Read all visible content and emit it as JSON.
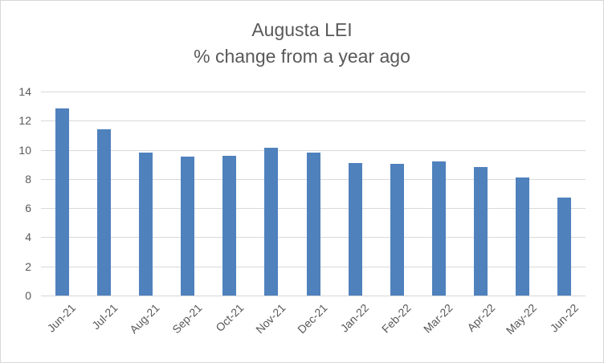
{
  "chart_data": {
    "type": "bar",
    "title": "Augusta LEI",
    "subtitle": "% change from a year ago",
    "categories": [
      "Jun-21",
      "Jul-21",
      "Aug-21",
      "Sep-21",
      "Oct-21",
      "Nov-21",
      "Dec-21",
      "Jan-22",
      "Feb-22",
      "Mar-22",
      "Apr-22",
      "May-22",
      "Jun-22"
    ],
    "values": [
      12.85,
      11.4,
      9.8,
      9.55,
      9.6,
      10.15,
      9.8,
      9.1,
      9.05,
      9.2,
      8.8,
      8.1,
      6.7
    ],
    "xlabel": "",
    "ylabel": "",
    "ylim": [
      0,
      14
    ],
    "yticks": [
      0,
      2,
      4,
      6,
      8,
      10,
      12,
      14
    ],
    "grid": true,
    "legend": "none",
    "bar_color": "#4f81bd",
    "gridline_color": "#d9d9d9",
    "axis_line_color": "#d6d6d6",
    "text_color": "#595959",
    "background_color": "#ffffff",
    "border_color": "#d8d8d8"
  }
}
